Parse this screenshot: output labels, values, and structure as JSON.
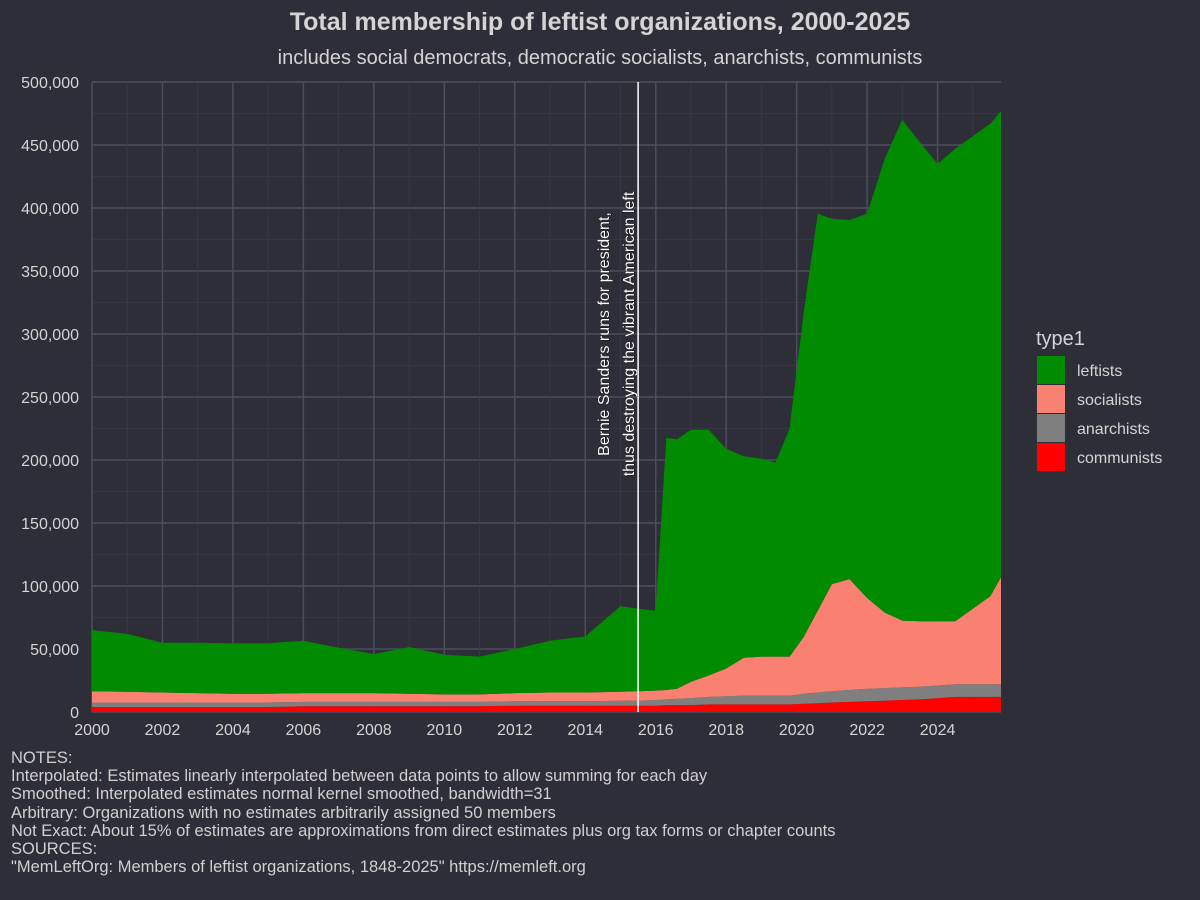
{
  "chart_data": {
    "type": "area",
    "stacked": true,
    "title": "Total membership of leftist organizations, 2000-2025",
    "subtitle": "includes social democrats, democratic socialists, anarchists, communists",
    "xlabel": "",
    "ylabel": "",
    "xlim": [
      2000,
      2025.8
    ],
    "ylim": [
      0,
      500000
    ],
    "grid": true,
    "x_ticks": [
      2000,
      2002,
      2004,
      2006,
      2008,
      2010,
      2012,
      2014,
      2016,
      2018,
      2020,
      2022,
      2024
    ],
    "y_ticks": [
      0,
      50000,
      100000,
      150000,
      200000,
      250000,
      300000,
      350000,
      400000,
      450000,
      500000
    ],
    "y_tick_labels": [
      "0",
      "50,000",
      "100,000",
      "150,000",
      "200,000",
      "250,000",
      "300,000",
      "350,000",
      "400,000",
      "450,000",
      "500,000"
    ],
    "legend": {
      "title": "type1",
      "placement": "right",
      "entries": [
        {
          "label": "leftists",
          "color": "#008b00"
        },
        {
          "label": "socialists",
          "color": "#fa8072"
        },
        {
          "label": "anarchists",
          "color": "#7f7f7f"
        },
        {
          "label": "communists",
          "color": "#ff0000"
        }
      ]
    },
    "annotation": {
      "x": 2015.5,
      "line1": "Bernie Sanders runs for president,",
      "line2": "thus destroying the vibrant American left"
    },
    "x": [
      2000,
      2001,
      2002,
      2003,
      2004,
      2005,
      2006,
      2007,
      2008,
      2009,
      2010,
      2011,
      2012,
      2013,
      2014,
      2015,
      2015.5,
      2016,
      2016.3,
      2016.6,
      2017,
      2017.5,
      2018,
      2018.5,
      2019,
      2019.4,
      2019.8,
      2020.2,
      2020.6,
      2021,
      2021.5,
      2022,
      2022.5,
      2023,
      2023.5,
      2024,
      2024.5,
      2025,
      2025.5,
      2025.8
    ],
    "series": [
      {
        "name": "communists",
        "color": "#ff0000",
        "values": [
          4000,
          4000,
          4000,
          4000,
          4000,
          4000,
          4500,
          4500,
          4500,
          4500,
          4500,
          4500,
          5000,
          5000,
          5000,
          5000,
          5000,
          5000,
          5500,
          5500,
          5500,
          6000,
          6000,
          6000,
          6000,
          6000,
          6000,
          6500,
          7000,
          7500,
          8000,
          8500,
          9000,
          9500,
          10000,
          11000,
          12000,
          12000,
          12000,
          12000
        ]
      },
      {
        "name": "anarchists",
        "color": "#7f7f7f",
        "values": [
          3500,
          3500,
          3500,
          3500,
          3500,
          3500,
          3500,
          3500,
          3500,
          3500,
          3500,
          3500,
          3500,
          3500,
          3500,
          4000,
          4000,
          4500,
          4500,
          5000,
          5500,
          6000,
          6500,
          7000,
          7000,
          7000,
          7000,
          8000,
          8500,
          9000,
          9500,
          10000,
          10000,
          10000,
          10000,
          10000,
          10000,
          10000,
          10000,
          10000
        ]
      },
      {
        "name": "socialists",
        "color": "#fa8072",
        "values": [
          9000,
          8500,
          8000,
          7500,
          7000,
          7000,
          7000,
          7000,
          7000,
          6500,
          6000,
          6000,
          6500,
          7000,
          7000,
          7000,
          7500,
          7500,
          7500,
          8000,
          13000,
          17000,
          22000,
          30000,
          31000,
          31000,
          31000,
          45000,
          65000,
          85000,
          88000,
          72000,
          60000,
          53000,
          52000,
          51000,
          50000,
          60000,
          70000,
          85000
        ]
      },
      {
        "name": "leftists",
        "color": "#008b00",
        "values": [
          48500,
          46000,
          39500,
          40000,
          40000,
          40000,
          41500,
          36000,
          31000,
          37000,
          31500,
          30000,
          35000,
          41000,
          44500,
          68000,
          65500,
          63500,
          200000,
          198000,
          200000,
          195000,
          174500,
          160000,
          157000,
          154000,
          181000,
          257500,
          315000,
          290000,
          285000,
          305000,
          360000,
          397500,
          380000,
          363000,
          375000,
          375000,
          375000,
          370000
        ]
      }
    ]
  },
  "notes": [
    "NOTES:",
    "Interpolated: Estimates linearly interpolated between data points to allow summing for each day",
    "Smoothed: Interpolated estimates normal kernel smoothed, bandwidth=31",
    "Arbitrary: Organizations with no estimates arbitrarily assigned 50 members",
    "Not Exact: About 15% of estimates are approximations from direct estimates plus org tax forms or chapter counts",
    "SOURCES:",
    "\"MemLeftOrg: Members of leftist organizations, 1848-2025\" https://memleft.org"
  ]
}
